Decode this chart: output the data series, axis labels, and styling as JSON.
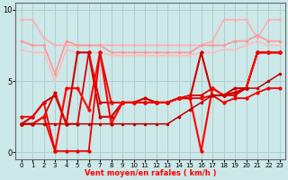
{
  "xlabel": "Vent moyen/en rafales ( km/h )",
  "xlim": [
    -0.5,
    23.5
  ],
  "ylim": [
    -0.5,
    10.5
  ],
  "yticks": [
    0,
    5,
    10
  ],
  "xticks": [
    0,
    1,
    2,
    3,
    4,
    5,
    6,
    7,
    8,
    9,
    10,
    11,
    12,
    13,
    14,
    15,
    16,
    17,
    18,
    19,
    20,
    21,
    22,
    23
  ],
  "bg_color": "#cce8e8",
  "grid_color": "#aacccc",
  "series": [
    {
      "x": [
        0,
        1,
        2,
        3,
        4,
        5,
        6,
        7,
        8,
        9,
        10,
        11,
        12,
        13,
        14,
        15,
        16,
        17,
        18,
        19,
        20,
        21,
        22,
        23
      ],
      "y": [
        9.3,
        9.3,
        8.0,
        7.5,
        7.5,
        7.5,
        7.5,
        7.5,
        7.5,
        7.5,
        7.5,
        7.5,
        7.5,
        7.5,
        7.5,
        7.5,
        7.5,
        7.8,
        9.3,
        9.3,
        9.3,
        8.0,
        9.3,
        9.3
      ],
      "color": "#ffb0b0",
      "lw": 1.2,
      "ms": 2.5
    },
    {
      "x": [
        0,
        1,
        2,
        3,
        4,
        5,
        6,
        7,
        8,
        9,
        10,
        11,
        12,
        13,
        14,
        15,
        16,
        17,
        18,
        19,
        20,
        21,
        22,
        23
      ],
      "y": [
        7.8,
        7.5,
        7.5,
        5.5,
        7.8,
        7.5,
        7.5,
        7.5,
        7.0,
        7.0,
        7.0,
        7.0,
        7.0,
        7.0,
        7.0,
        7.0,
        7.5,
        7.5,
        7.5,
        7.8,
        7.8,
        8.2,
        7.8,
        7.8
      ],
      "color": "#ff9898",
      "lw": 1.2,
      "ms": 2.5
    },
    {
      "x": [
        0,
        1,
        2,
        3,
        4,
        5,
        6,
        7,
        8,
        9,
        10,
        11,
        12,
        13,
        14,
        15,
        16,
        17,
        18,
        19,
        20,
        21,
        22,
        23
      ],
      "y": [
        7.2,
        7.0,
        7.0,
        5.0,
        7.2,
        7.0,
        7.0,
        7.0,
        6.8,
        6.8,
        6.8,
        6.8,
        6.8,
        6.8,
        6.8,
        6.8,
        7.0,
        7.0,
        7.2,
        7.2,
        7.5,
        7.8,
        7.5,
        7.5
      ],
      "color": "#ffbaba",
      "lw": 1.0,
      "ms": 2.0
    },
    {
      "x": [
        0,
        1,
        2,
        3,
        4,
        5,
        6,
        7,
        8,
        9,
        10,
        11,
        12,
        13,
        14,
        15,
        16,
        17,
        18,
        19,
        20,
        21,
        22,
        23
      ],
      "y": [
        2.0,
        2.5,
        3.5,
        4.0,
        2.0,
        7.0,
        7.0,
        2.5,
        2.5,
        3.5,
        3.5,
        3.8,
        3.5,
        3.5,
        3.8,
        3.8,
        7.0,
        4.0,
        4.0,
        4.5,
        4.5,
        7.0,
        7.0,
        7.0
      ],
      "color": "#cc0000",
      "lw": 1.5,
      "ms": 3.0
    },
    {
      "x": [
        0,
        1,
        2,
        3,
        4,
        5,
        6,
        7,
        8,
        9,
        10,
        11,
        12,
        13,
        14,
        15,
        16,
        17,
        18,
        19,
        20,
        21,
        22,
        23
      ],
      "y": [
        2.0,
        2.0,
        2.5,
        4.2,
        2.0,
        2.0,
        7.0,
        3.5,
        3.5,
        3.5,
        3.5,
        3.5,
        3.5,
        3.5,
        3.8,
        4.0,
        4.0,
        4.5,
        4.0,
        4.0,
        4.5,
        7.0,
        7.0,
        7.0
      ],
      "color": "#dd0000",
      "lw": 1.3,
      "ms": 3.0
    },
    {
      "x": [
        0,
        1,
        2,
        3,
        4,
        5,
        6,
        7,
        8,
        9,
        10,
        11,
        12,
        13,
        14,
        15,
        16,
        17,
        18,
        19,
        20,
        21,
        22,
        23
      ],
      "y": [
        2.0,
        2.0,
        2.5,
        0.1,
        4.5,
        4.5,
        3.0,
        7.0,
        2.0,
        3.5,
        3.5,
        3.5,
        3.5,
        3.5,
        3.8,
        3.8,
        0.1,
        4.5,
        4.0,
        4.2,
        4.5,
        7.0,
        7.0,
        7.0
      ],
      "color": "#ff0000",
      "lw": 1.5,
      "ms": 3.0
    },
    {
      "x": [
        0,
        1,
        2,
        3,
        4,
        5,
        6,
        7,
        8,
        9,
        10,
        11,
        12,
        13,
        14,
        15,
        16,
        17,
        18,
        19,
        20,
        21,
        22,
        23
      ],
      "y": [
        2.5,
        2.5,
        3.5,
        0.1,
        0.1,
        0.1,
        0.1,
        7.0,
        3.5,
        3.5,
        3.5,
        3.5,
        3.5,
        3.5,
        3.8,
        3.8,
        3.8,
        4.0,
        3.5,
        3.8,
        3.8,
        4.2,
        4.5,
        4.5
      ],
      "color": "#ee0000",
      "lw": 1.3,
      "ms": 3.0
    },
    {
      "x": [
        0,
        1,
        2,
        3,
        4,
        5,
        6,
        7,
        8,
        9,
        10,
        11,
        12,
        13,
        14,
        15,
        16,
        17,
        18,
        19,
        20,
        21,
        22,
        23
      ],
      "y": [
        2.0,
        2.0,
        2.0,
        2.0,
        2.0,
        2.0,
        2.0,
        2.0,
        2.0,
        2.0,
        2.0,
        2.0,
        2.0,
        2.0,
        2.5,
        3.0,
        3.5,
        4.0,
        4.0,
        4.2,
        4.5,
        4.5,
        5.0,
        5.5
      ],
      "color": "#bb0000",
      "lw": 1.1,
      "ms": 2.5
    }
  ]
}
